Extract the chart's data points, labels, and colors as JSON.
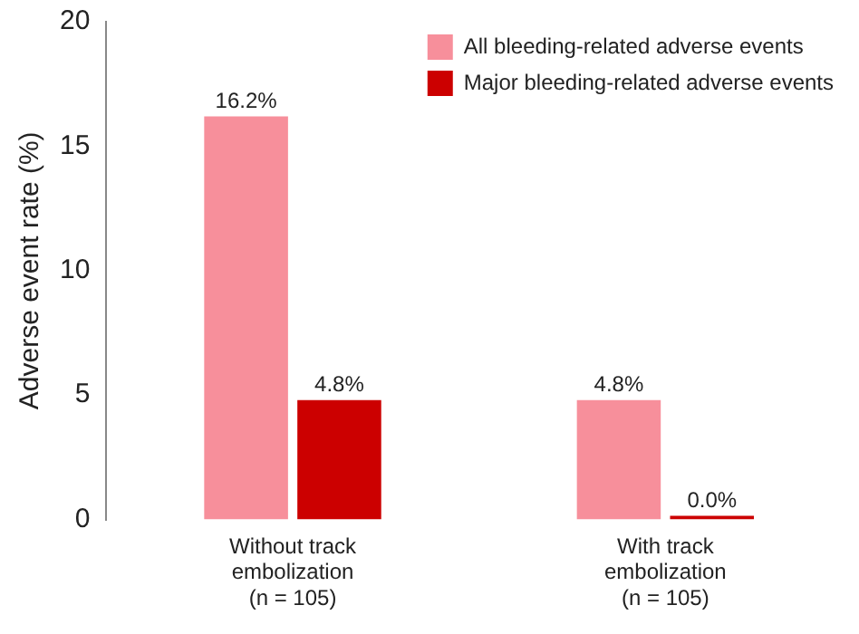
{
  "chart_data": {
    "type": "bar",
    "ylabel": "Adverse event rate (%)",
    "categories": [
      "Without track\nembolization\n(n = 105)",
      "With track\nembolization\n(n = 105)"
    ],
    "series": [
      {
        "name": "All bleeding-related adverse events",
        "color": "#f78f9b",
        "values": [
          16.2,
          4.8
        ],
        "value_labels": [
          "16.2%",
          "4.8%"
        ]
      },
      {
        "name": "Major bleeding-related adverse events",
        "color": "#cc0000",
        "values": [
          4.8,
          0.0
        ],
        "value_labels": [
          "4.8%",
          "0.0%"
        ]
      }
    ],
    "ylim": [
      0,
      20
    ],
    "yticks": [
      0,
      5,
      10,
      15,
      20
    ],
    "grid": false,
    "legend": "top right"
  }
}
